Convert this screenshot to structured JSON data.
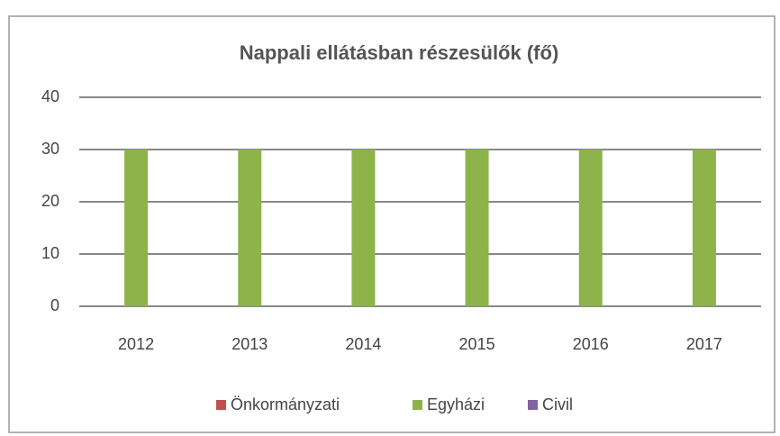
{
  "chart_data": {
    "type": "bar",
    "title": "Nappali ellátásban részesülők (fő)",
    "categories": [
      "2012",
      "2013",
      "2014",
      "2015",
      "2016",
      "2017"
    ],
    "series": [
      {
        "name": "Önkormányzati",
        "color": "#c0504d",
        "values": [
          0,
          0,
          0,
          0,
          0,
          0
        ]
      },
      {
        "name": "Egyházi",
        "color": "#8db34a",
        "values": [
          30,
          30,
          30,
          30,
          30,
          30
        ]
      },
      {
        "name": "Civil",
        "color": "#8064a2",
        "values": [
          0,
          0,
          0,
          0,
          0,
          0
        ]
      }
    ],
    "ylim": [
      0,
      40
    ],
    "yticks": [
      0,
      10,
      20,
      30,
      40
    ],
    "grid": true,
    "legend": "bottom"
  }
}
